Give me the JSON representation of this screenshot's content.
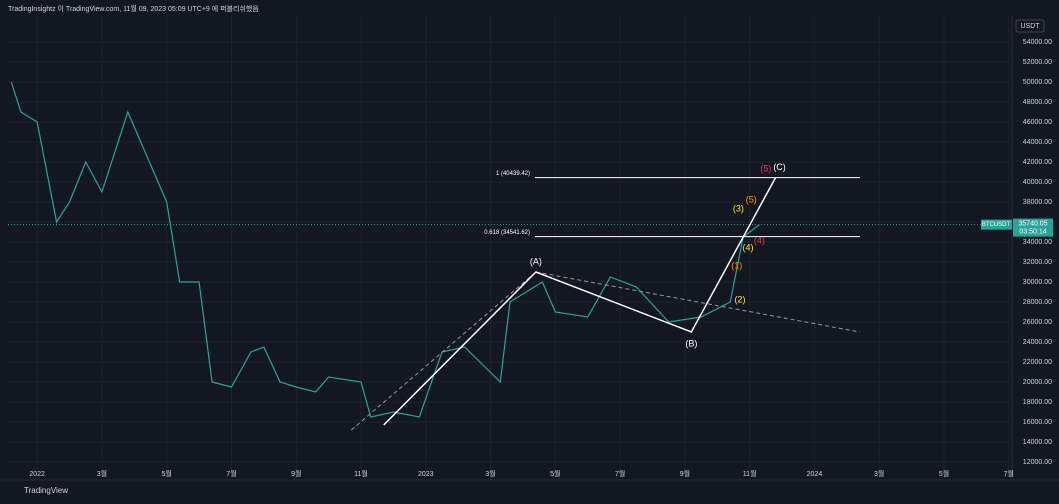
{
  "header": "TradingInsightz 이 TradingView.com, 11월 09, 2023 05:09 UTC+9 에 퍼블리쉬했음",
  "footer": "TradingView",
  "currency": "USDT",
  "chart_data": {
    "type": "line",
    "x": [
      -0.8,
      -0.5,
      0,
      0.6,
      1,
      1.5,
      2,
      2.8,
      3.2,
      4,
      4.4,
      5,
      5.4,
      6,
      6.6,
      7,
      7.5,
      8,
      8.6,
      9,
      10,
      10.3,
      11,
      11.8,
      12.5,
      13.2,
      14.3,
      14.6,
      15.6,
      16,
      17,
      17.7,
      18.5,
      19.5,
      20.5,
      21.4,
      21.8,
      22.3
    ],
    "series": [
      {
        "name": "BTCUSDT",
        "color": "#26a69a",
        "values": [
          50000,
          47000,
          46000,
          36000,
          38000,
          42000,
          39000,
          47000,
          44000,
          38000,
          30000,
          30000,
          20000,
          19500,
          23000,
          23500,
          20000,
          19500,
          19000,
          20500,
          20000,
          16500,
          17000,
          16500,
          23000,
          23500,
          20000,
          28000,
          30000,
          27000,
          26500,
          30500,
          29500,
          26000,
          26500,
          28000,
          34500,
          35740.05
        ]
      }
    ],
    "last_price": {
      "value": 35740.05,
      "label": "35740.05"
    },
    "countdown": "03:50:14",
    "xlim": [
      -0.9,
      30.1
    ],
    "xticks": [
      {
        "value": 0,
        "label": "2022"
      },
      {
        "value": 2,
        "label": "3월"
      },
      {
        "value": 4,
        "label": "5월"
      },
      {
        "value": 6,
        "label": "7월"
      },
      {
        "value": 8,
        "label": "9월"
      },
      {
        "value": 10,
        "label": "11월"
      },
      {
        "value": 12,
        "label": "2023"
      },
      {
        "value": 14,
        "label": "3월"
      },
      {
        "value": 16,
        "label": "5월"
      },
      {
        "value": 18,
        "label": "7월"
      },
      {
        "value": 20,
        "label": "9월"
      },
      {
        "value": 22,
        "label": "11월"
      },
      {
        "value": 24,
        "label": "2024"
      },
      {
        "value": 26,
        "label": "3월"
      },
      {
        "value": 28,
        "label": "5월"
      },
      {
        "value": 30,
        "label": "7월"
      }
    ],
    "ylim": [
      11200,
      56700
    ],
    "yticks": [
      {
        "value": 12000,
        "label": "12000.00"
      },
      {
        "value": 14000,
        "label": "14000.00"
      },
      {
        "value": 16000,
        "label": "16000.00"
      },
      {
        "value": 18000,
        "label": "18000.00"
      },
      {
        "value": 20000,
        "label": "20000.00"
      },
      {
        "value": 22000,
        "label": "22000.00"
      },
      {
        "value": 24000,
        "label": "24000.00"
      },
      {
        "value": 26000,
        "label": "26000.00"
      },
      {
        "value": 28000,
        "label": "28000.00"
      },
      {
        "value": 30000,
        "label": "30000.00"
      },
      {
        "value": 32000,
        "label": "32000.00"
      },
      {
        "value": 34000,
        "label": "34000.00"
      },
      {
        "value": 36000,
        "label": "36000.00"
      },
      {
        "value": 38000,
        "label": "38000.00"
      },
      {
        "value": 40000,
        "label": "40000.00"
      },
      {
        "value": 42000,
        "label": "42000.00"
      },
      {
        "value": 44000,
        "label": "44000.00"
      },
      {
        "value": 46000,
        "label": "46000.00"
      },
      {
        "value": 48000,
        "label": "48000.00"
      },
      {
        "value": 50000,
        "label": "50000.00"
      },
      {
        "value": 52000,
        "label": "52000.00"
      },
      {
        "value": 54000,
        "label": "54000.00"
      }
    ],
    "grid": true,
    "fib_levels": [
      {
        "value": 40439.42,
        "label": "1 (40439.42)"
      },
      {
        "value": 34541.62,
        "label": "0.618 (34541.62)"
      }
    ],
    "wave": {
      "color": "#ffffff",
      "x": [
        10.7,
        15.4,
        20.2,
        22.8
      ],
      "values": [
        15700,
        31000,
        25000,
        40440
      ],
      "labels": [
        null,
        "(A)",
        "(B)",
        "(C)"
      ]
    },
    "trend_lines": [
      {
        "color": "#9598a1",
        "x": [
          9.7,
          15.4
        ],
        "values": [
          15200,
          31000
        ]
      },
      {
        "color": "#9598a1",
        "x": [
          15.4,
          25.4
        ],
        "values": [
          31000,
          25000
        ]
      }
    ],
    "sub_waves": [
      {
        "label": "(1)",
        "color": "#ff9800",
        "x": 21.6,
        "value": 31600
      },
      {
        "label": "(2)",
        "color": "#ffeb3b",
        "x": 21.7,
        "value": 28200
      },
      {
        "label": "(3)",
        "color": "#ffeb3b",
        "x": 21.65,
        "value": 37300
      },
      {
        "label": "(4)",
        "color": "#ffeb3b",
        "x": 21.95,
        "value": 33400
      },
      {
        "label": "(5)",
        "color": "#ff9800",
        "x": 22.05,
        "value": 38200
      },
      {
        "label": "(4)",
        "color": "#f23645",
        "x": 22.3,
        "value": 34100
      },
      {
        "label": "(5)",
        "color": "#f23645",
        "x": 22.5,
        "value": 41300
      }
    ]
  }
}
